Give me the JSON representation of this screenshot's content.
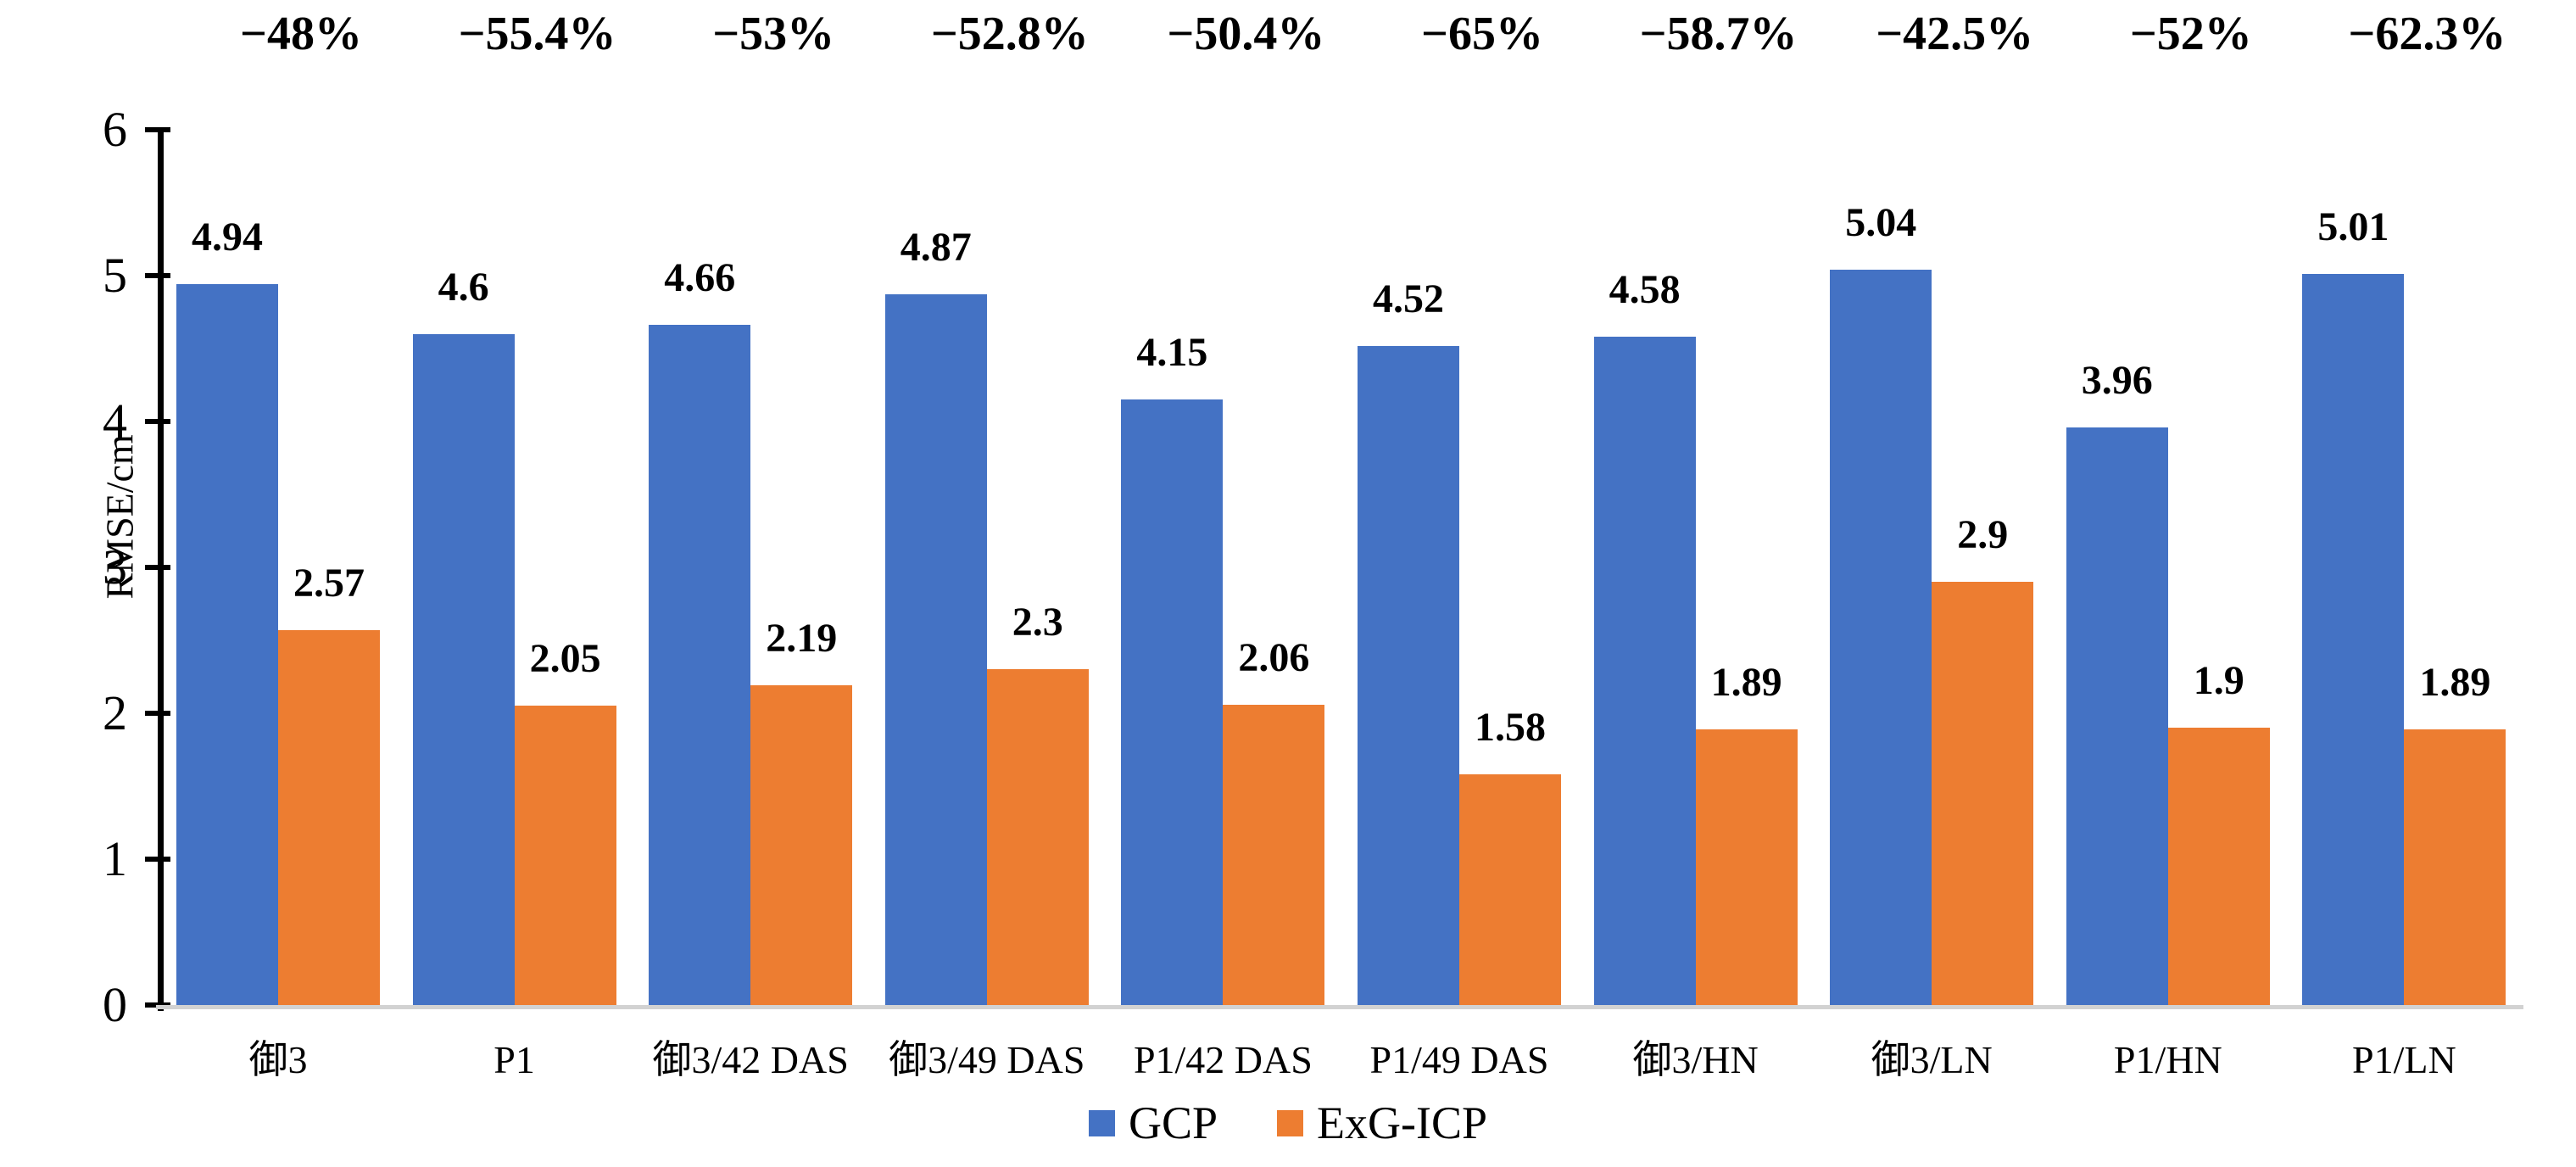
{
  "chart_data": {
    "type": "bar",
    "title": "",
    "ylabel": "RMSE/cm",
    "xlabel": "",
    "ylim": [
      0,
      6
    ],
    "ytick_labels": [
      "0",
      "1",
      "2",
      "3",
      "4",
      "5",
      "6"
    ],
    "grid": false,
    "legend_position": "bottom",
    "categories": [
      "御3",
      "P1",
      "御3/42 DAS",
      "御3/49 DAS",
      "P1/42 DAS",
      "P1/49 DAS",
      "御3/HN",
      "御3/LN",
      "P1/HN",
      "P1/LN"
    ],
    "series": [
      {
        "name": "GCP",
        "color": "#4472C4",
        "values": [
          4.94,
          4.6,
          4.66,
          4.87,
          4.15,
          4.52,
          4.58,
          5.04,
          3.96,
          5.01
        ],
        "value_labels": [
          "4.94",
          "4.6",
          "4.66",
          "4.87",
          "4.15",
          "4.52",
          "4.58",
          "5.04",
          "3.96",
          "5.01"
        ]
      },
      {
        "name": "ExG-ICP",
        "color": "#ED7D31",
        "values": [
          2.57,
          2.05,
          2.19,
          2.3,
          2.06,
          1.58,
          1.89,
          2.9,
          1.9,
          1.89
        ],
        "value_labels": [
          "2.57",
          "2.05",
          "2.19",
          "2.3",
          "2.06",
          "1.58",
          "1.89",
          "2.9",
          "1.9",
          "1.89"
        ]
      }
    ],
    "reduction_labels": [
      "−48%",
      "−55.4%",
      "−53%",
      "−52.8%",
      "−50.4%",
      "−65%",
      "−58.7%",
      "−42.5%",
      "−52%",
      "−62.3%"
    ]
  }
}
